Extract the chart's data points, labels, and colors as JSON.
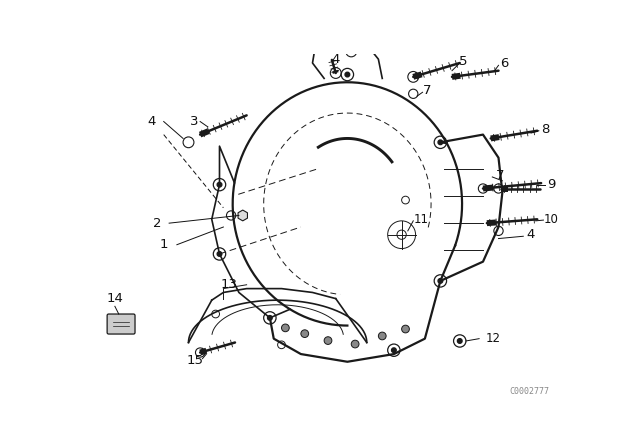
{
  "bg_color": "#ffffff",
  "line_color": "#1a1a1a",
  "watermark": "C0002777",
  "fig_width": 6.4,
  "fig_height": 4.48,
  "dpi": 100,
  "xlim": [
    0,
    640
  ],
  "ylim": [
    0,
    448
  ]
}
